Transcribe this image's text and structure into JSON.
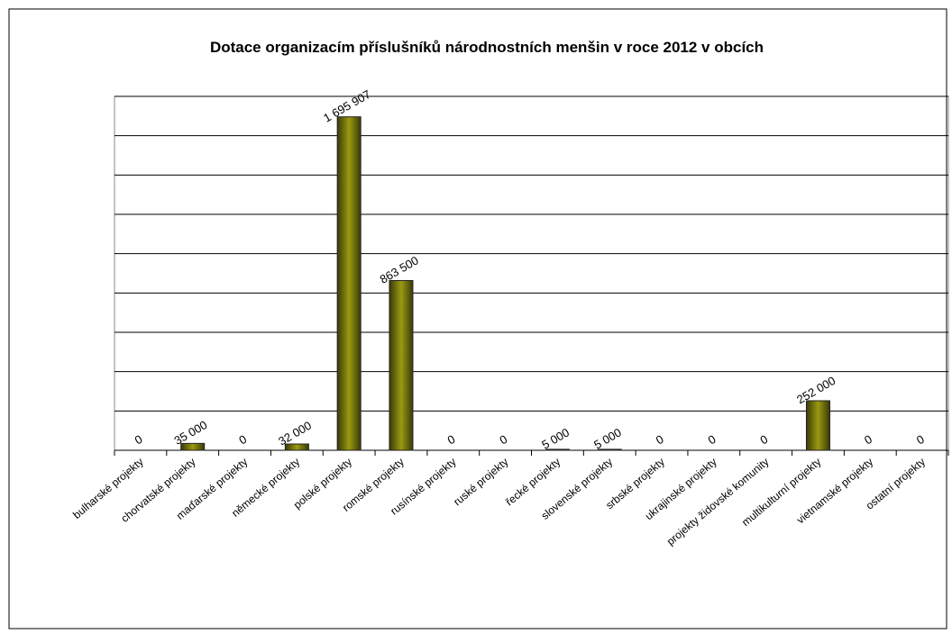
{
  "chart_data": {
    "type": "bar",
    "title": "Dotace organizacím příslušníků národnostních menšin v roce 2012 v obcích",
    "categories": [
      "bulharské projekty",
      "chorvatské projekty",
      "maďarské projekty",
      "německé projekty",
      "polské projekty",
      "romské projekty",
      "rusínské projekty",
      "ruské projekty",
      "řecké projekty",
      "slovenské projekty",
      "srbské projekty",
      "ukrajinské projekty",
      "projekty židovské komunity",
      "multikulturní projekty",
      "vietnamské projekty",
      "ostatní projekty"
    ],
    "values": [
      0,
      35000,
      0,
      32000,
      1695907,
      863500,
      0,
      0,
      5000,
      5000,
      0,
      0,
      0,
      252000,
      0,
      0
    ],
    "value_labels": [
      "0",
      "35 000",
      "0",
      "32 000",
      "1 695 907",
      "863 500",
      "0",
      "0",
      "5 000",
      "5 000",
      "0",
      "0",
      "0",
      "252 000",
      "0",
      "0"
    ],
    "color": "#8a8a10",
    "ylim": [
      0,
      1800000
    ],
    "yticks": [
      0,
      200000,
      400000,
      600000,
      800000,
      1000000,
      1200000,
      1400000,
      1600000,
      1800000
    ],
    "grid": true
  }
}
